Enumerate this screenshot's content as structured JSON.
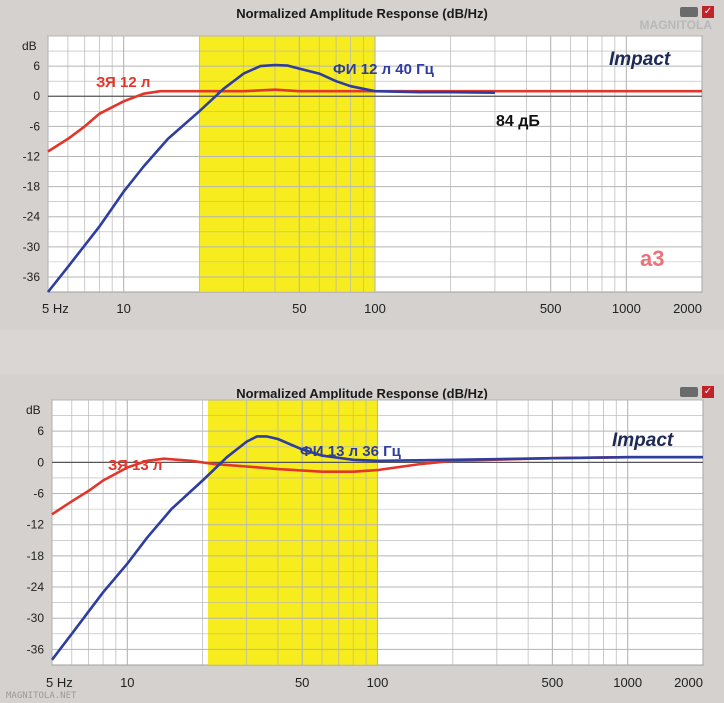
{
  "charts": [
    {
      "title": "Normalized Amplitude Response (dB/Hz)",
      "brand_label": "Impact",
      "watermark": "MAGNITOLA",
      "corner_logo": "a3",
      "annotations": {
        "closed_box": "ЗЯ 12 л",
        "ported": "ФИ 12 л 40 Гц",
        "level": "84 дБ"
      }
    },
    {
      "title": "Normalized Amplitude Response (dB/Hz)",
      "brand_label": "Impact",
      "annotations": {
        "closed_box": "ЗЯ 13 л",
        "ported": "ФИ 13 л 36 Гц"
      }
    }
  ],
  "footer_watermark": "MAGNITOLA.NET",
  "colors": {
    "plot_bg": "#ffffff",
    "grid": "#b5b5b5",
    "highlight_band": "#f6ec1e",
    "closed_box_curve": "#e2362b",
    "ported_curve": "#2e3da0",
    "brand_text": "#1e2a55",
    "ported_text": "#2e3da0",
    "closed_text": "#e2362b"
  },
  "chart_data": [
    {
      "type": "line",
      "title": "Normalized Amplitude Response (dB/Hz)",
      "xlabel": "",
      "ylabel": "dB",
      "x_scale": "log",
      "xlim": [
        5,
        2000
      ],
      "ylim": [
        -39,
        12
      ],
      "x_ticks": [
        5,
        10,
        50,
        100,
        500,
        1000,
        2000
      ],
      "x_tick_labels": [
        "5 Hz",
        "10",
        "50",
        "100",
        "500",
        "1000",
        "2000"
      ],
      "y_ticks": [
        6,
        0,
        -6,
        -12,
        -18,
        -24,
        -30,
        -36
      ],
      "y_tick_labels": [
        "6",
        "0",
        "-6",
        "-12",
        "-18",
        "-24",
        "-30",
        "-36"
      ],
      "y_unit_label": "dB",
      "highlight_band": [
        20,
        100
      ],
      "grid": true,
      "series": [
        {
          "name": "ЗЯ 12 л",
          "color": "#e2362b",
          "x": [
            5,
            6,
            7,
            8,
            10,
            12,
            14,
            20,
            30,
            40,
            50,
            70,
            100,
            200,
            500,
            1000,
            2000
          ],
          "y": [
            -11,
            -8.5,
            -6,
            -3.5,
            -1,
            0.5,
            1,
            1,
            1,
            1.3,
            1,
            1,
            1,
            1,
            1,
            1,
            1
          ]
        },
        {
          "name": "ФИ 12 л 40 Гц",
          "color": "#2e3da0",
          "x": [
            5,
            6,
            8,
            10,
            12,
            15,
            20,
            25,
            30,
            35,
            40,
            45,
            50,
            60,
            70,
            80,
            100,
            150,
            200,
            300
          ],
          "y": [
            -39,
            -34,
            -26,
            -19,
            -14,
            -8.5,
            -3,
            1.5,
            4.5,
            6,
            6.2,
            6.1,
            5.5,
            4.5,
            3,
            2,
            1,
            0.8,
            0.8,
            0.7
          ]
        }
      ]
    },
    {
      "type": "line",
      "title": "Normalized Amplitude Response (dB/Hz)",
      "xlabel": "",
      "ylabel": "dB",
      "x_scale": "log",
      "xlim": [
        5,
        2000
      ],
      "ylim": [
        -39,
        12
      ],
      "x_ticks": [
        5,
        10,
        50,
        100,
        500,
        1000,
        2000
      ],
      "x_tick_labels": [
        "5 Hz",
        "10",
        "50",
        "100",
        "500",
        "1000",
        "2000"
      ],
      "y_ticks": [
        6,
        0,
        -6,
        -12,
        -18,
        -24,
        -30,
        -36
      ],
      "y_tick_labels": [
        "6",
        "0",
        "-6",
        "-12",
        "-18",
        "-24",
        "-30",
        "-36"
      ],
      "y_unit_label": "dB",
      "highlight_band": [
        21,
        100
      ],
      "grid": true,
      "series": [
        {
          "name": "ЗЯ 13 л",
          "color": "#e2362b",
          "x": [
            5,
            6,
            7,
            8,
            10,
            12,
            14,
            18,
            22,
            30,
            40,
            60,
            80,
            100,
            150,
            200,
            500,
            1000,
            2000
          ],
          "y": [
            -10,
            -7.5,
            -5.5,
            -3.5,
            -1,
            0.3,
            0.7,
            0.3,
            -0.3,
            -0.8,
            -1.3,
            -1.8,
            -1.8,
            -1.5,
            -0.3,
            0.3,
            0.8,
            1,
            1
          ]
        },
        {
          "name": "ФИ 13 л 36 Гц",
          "color": "#2e3da0",
          "x": [
            5,
            6,
            8,
            10,
            12,
            15,
            20,
            25,
            30,
            33,
            36,
            40,
            50,
            60,
            80,
            100,
            200,
            500,
            1000,
            2000
          ],
          "y": [
            -38,
            -33,
            -25,
            -19.5,
            -14.5,
            -9,
            -3.5,
            1,
            4,
            5,
            5,
            4.5,
            2.5,
            1.3,
            0.5,
            0.3,
            0.5,
            0.8,
            1,
            1
          ]
        }
      ]
    }
  ]
}
